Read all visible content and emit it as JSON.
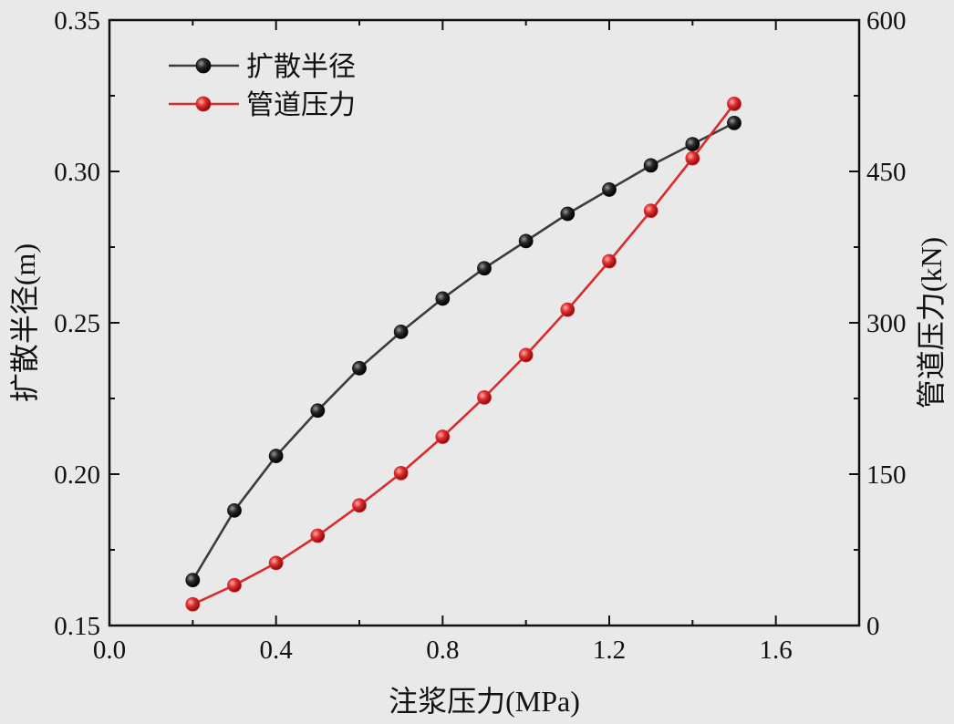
{
  "chart_data": {
    "type": "line",
    "xlabel": "注浆压力(MPa)",
    "ylabel_left": "扩散半径(m)",
    "ylabel_right": "管道压力(kN)",
    "xlim": [
      0.0,
      1.8
    ],
    "ylim_left": [
      0.15,
      0.35
    ],
    "ylim_right": [
      0,
      600
    ],
    "x_ticks": [
      "0.0",
      "0.4",
      "0.8",
      "1.2",
      "1.6"
    ],
    "y_left_ticks": [
      "0.15",
      "0.20",
      "0.25",
      "0.30",
      "0.35"
    ],
    "y_right_ticks": [
      "0",
      "150",
      "300",
      "450",
      "600"
    ],
    "grid": false,
    "legend_position": "top-left",
    "x": [
      0.2,
      0.3,
      0.4,
      0.5,
      0.6,
      0.7,
      0.8,
      0.9,
      1.0,
      1.1,
      1.2,
      1.3,
      1.4,
      1.5
    ],
    "series": [
      {
        "name": "扩散半径",
        "axis": "left",
        "color": "#3c3c3c",
        "marker_color": "#111111",
        "values": [
          0.165,
          0.188,
          0.206,
          0.221,
          0.235,
          0.247,
          0.258,
          0.268,
          0.277,
          0.286,
          0.294,
          0.302,
          0.309,
          0.316
        ]
      },
      {
        "name": "管道压力",
        "axis": "right",
        "color": "#d92b2b",
        "marker_color": "#d92b2b",
        "values": [
          21,
          40,
          62,
          89,
          119,
          151,
          187,
          226,
          268,
          313,
          361,
          411,
          463,
          517
        ]
      }
    ]
  }
}
